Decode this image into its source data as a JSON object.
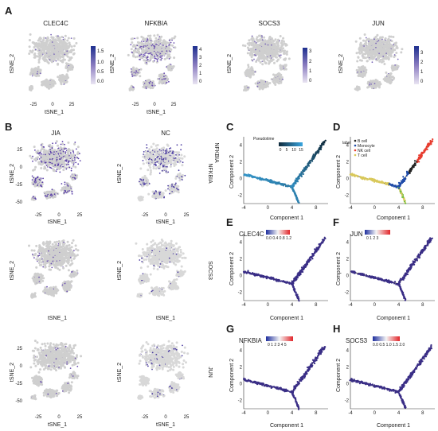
{
  "panels": {
    "A": {
      "label": "A",
      "genes": [
        "CLEC4C",
        "NFKBIA",
        "SOCS3",
        "JUN"
      ],
      "colorbar_ticks": [
        [
          "0.0",
          "0.5",
          "1.0",
          "1.5"
        ],
        [
          "0",
          "1",
          "2",
          "3",
          "4"
        ],
        [
          "0",
          "1",
          "2",
          "3"
        ],
        [
          "0",
          "1",
          "2",
          "3"
        ]
      ]
    },
    "B": {
      "label": "B",
      "conditions": [
        "JIA",
        "NC"
      ],
      "row_genes": [
        "NFKBIA",
        "SOCS3",
        "JUN"
      ]
    },
    "C": {
      "label": "C",
      "legend_title": "Pseudotime",
      "legend_ticks": [
        "0",
        "5",
        "10",
        "15"
      ]
    },
    "D": {
      "label": "D",
      "legend_title": "label",
      "legend_items": [
        "B cell",
        "Monocyte",
        "NK cell",
        "T cell"
      ],
      "legend_colors": [
        "#222222",
        "#1f4ba8",
        "#e83c2f",
        "#d9c85a"
      ]
    },
    "E": {
      "label": "E",
      "gene": "CLEC4C",
      "scale": "0.0 0.4 0.8 1.2"
    },
    "F": {
      "label": "F",
      "gene": "JUN",
      "scale": "0 1 2 3"
    },
    "G": {
      "label": "G",
      "gene": "NFKBIA",
      "scale": "0 1 2 3 4 5"
    },
    "H": {
      "label": "H",
      "gene": "SOCS3",
      "scale": "0.0 0.5 1.0 1.5 2.0"
    }
  },
  "axes": {
    "tsne_x": "tSNE_1",
    "tsne_y": "tSNE_2",
    "tsne_ticks_x": [
      "-25",
      "0",
      "25"
    ],
    "tsne_ticks_y": [
      "-50",
      "-25",
      "0",
      "25"
    ],
    "comp_x": "Component 1",
    "comp_y": "Component 2",
    "comp_ticks_x": [
      "-4",
      "0",
      "4",
      "8"
    ],
    "comp_ticks_y": [
      "-2",
      "0",
      "2",
      "4"
    ]
  },
  "colors": {
    "cell_grey": "#cfcfcf",
    "expr_purple": "#6a4fb0",
    "expr_blue": "#2a3fa8",
    "traj_dark": "#3a2e86"
  }
}
